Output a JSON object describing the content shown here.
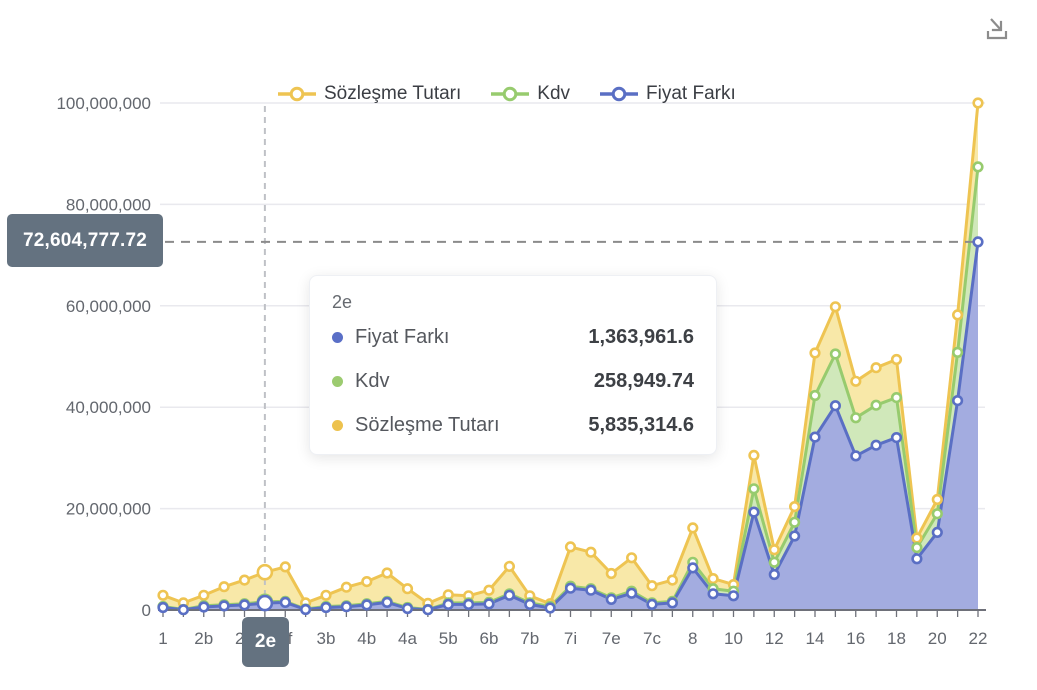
{
  "toolbar": {
    "download_title": "Download"
  },
  "legend": {
    "items": [
      {
        "label": "Sözleşme Tutarı",
        "color": "#eec452"
      },
      {
        "label": "Kdv",
        "color": "#97cb6e"
      },
      {
        "label": "Fiyat Farkı",
        "color": "#5a6fc4"
      }
    ]
  },
  "tooltip": {
    "title": "2e",
    "rows": [
      {
        "label": "Fiyat Farkı",
        "value": "1,363,961.6",
        "color": "#5a6fc7"
      },
      {
        "label": "Kdv",
        "value": "258,949.74",
        "color": "#9ccb70"
      },
      {
        "label": "Sözleşme Tutarı",
        "value": "5,835,314.6",
        "color": "#edc24e"
      }
    ]
  },
  "highlight": {
    "category": "2e",
    "index": 5,
    "axis_marker_value": "72,604,777.72",
    "axis_marker_value_millions": 72.604778
  },
  "chart_data": {
    "type": "area",
    "stacked": true,
    "grid": true,
    "legend_position": "top",
    "categories": [
      "1",
      "",
      "2b",
      "",
      "2d",
      "2e",
      "2f",
      "",
      "3b",
      "",
      "4b",
      "",
      "4a",
      "",
      "5b",
      "",
      "6b",
      "",
      "7b",
      "",
      "7i",
      "",
      "7e",
      "",
      "7c",
      "",
      "8",
      "",
      "10",
      "",
      "12",
      "",
      "14",
      "",
      "16",
      "",
      "18",
      "",
      "20",
      "",
      "22"
    ],
    "y_axis": {
      "range_millions": [
        0,
        100
      ],
      "ticks_millions": [
        0,
        20,
        40,
        60,
        80,
        100
      ],
      "tick_labels": [
        "0",
        "20,000,000",
        "40,000,000",
        "60,000,000",
        "80,000,000",
        "100,000,000"
      ]
    },
    "series": [
      {
        "name": "Fiyat Farkı",
        "line_color": "#5a6fc4",
        "fill_color": "#a3ace0",
        "cumulative_top_millions": [
          0.5,
          0.05,
          0.6,
          0.8,
          1.0,
          1.363962,
          1.5,
          0.1,
          0.5,
          0.65,
          1.0,
          1.5,
          0.3,
          0.05,
          1.1,
          1.1,
          1.2,
          2.9,
          1.1,
          0.4,
          4.3,
          3.9,
          2.1,
          3.3,
          1.1,
          1.4,
          8.3,
          3.2,
          2.8,
          19.3,
          7.0,
          14.6,
          34.1,
          40.3,
          30.4,
          32.5,
          34.0,
          10.1,
          15.3,
          41.3,
          72.6
        ]
      },
      {
        "name": "Kdv",
        "line_color": "#97cb6e",
        "fill_color": "#d0e8ba",
        "cumulative_top_millions": [
          0.7,
          0.1,
          0.85,
          1.05,
          1.25,
          1.622911,
          1.7,
          0.2,
          0.7,
          0.85,
          1.25,
          1.7,
          0.5,
          0.1,
          1.4,
          1.4,
          1.5,
          3.2,
          1.4,
          0.7,
          4.7,
          4.2,
          2.4,
          3.7,
          1.4,
          1.7,
          9.4,
          4.2,
          3.7,
          23.9,
          9.4,
          17.3,
          42.3,
          50.5,
          37.9,
          40.4,
          41.9,
          12.3,
          19.0,
          50.8,
          87.4
        ]
      },
      {
        "name": "Sözleşme Tutarı",
        "line_color": "#eec452",
        "fill_color": "#f8e8a8",
        "cumulative_top_millions": [
          2.9,
          1.4,
          2.9,
          4.6,
          5.9,
          7.458226,
          8.5,
          1.4,
          2.9,
          4.5,
          5.6,
          7.3,
          4.2,
          1.3,
          3.0,
          2.8,
          3.9,
          8.6,
          2.8,
          1.25,
          12.45,
          11.4,
          7.2,
          10.3,
          4.8,
          5.9,
          16.2,
          6.2,
          5.0,
          30.5,
          11.9,
          20.4,
          50.7,
          59.8,
          45.1,
          47.8,
          49.4,
          14.2,
          21.8,
          58.2,
          100.0
        ]
      }
    ],
    "tooltip_point": {
      "category": "2e",
      "Fiyat Farkı": 1363961.6,
      "Kdv": 258949.74,
      "Sözleşme Tutarı": 5835314.6
    }
  },
  "colors": {
    "axis_line": "#6E7079",
    "grid_line": "#e9e9ee",
    "axis_text": "#63676e",
    "pointer_badge_bg": "#647280",
    "pointer_dash": "#8b8b8b",
    "hover_dash": "#bfc1c6",
    "icon_gray": "#8c8c8c"
  }
}
